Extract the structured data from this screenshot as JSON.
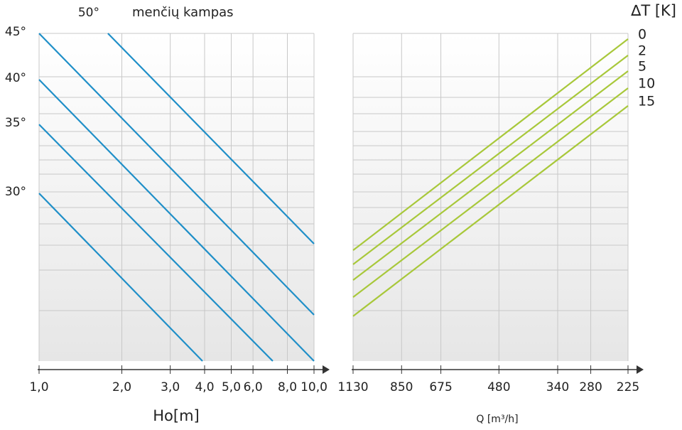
{
  "chart_data": [
    {
      "type": "line",
      "title": "menčių kampas",
      "xlabel": "Ho[m]",
      "xscale": "log",
      "xlim": [
        1,
        10
      ],
      "ylim": [
        0,
        100
      ],
      "xticks": [
        {
          "value": 1,
          "label": "1,0"
        },
        {
          "value": 2,
          "label": "2,0"
        },
        {
          "value": 3,
          "label": "3,0"
        },
        {
          "value": 4,
          "label": "4,0"
        },
        {
          "value": 5,
          "label": "5,0"
        },
        {
          "value": 6,
          "label": "6,0"
        },
        {
          "value": 8,
          "label": "8,0"
        },
        {
          "value": 10,
          "label": "10,0"
        }
      ],
      "grid": true,
      "series": [
        {
          "name": "50°",
          "color": "#1f8fc8",
          "x": [
            1.78,
            10
          ],
          "values": [
            100,
            35.8
          ]
        },
        {
          "name": "45°",
          "color": "#1f8fc8",
          "x": [
            1,
            10
          ],
          "values": [
            100,
            14.1
          ]
        },
        {
          "name": "40°",
          "color": "#1f8fc8",
          "x": [
            1,
            10
          ],
          "values": [
            85.9,
            0
          ]
        },
        {
          "name": "35°",
          "color": "#1f8fc8",
          "x": [
            1,
            7.08
          ],
          "values": [
            72.2,
            0
          ]
        },
        {
          "name": "30°",
          "color": "#1f8fc8",
          "x": [
            1,
            3.93
          ],
          "values": [
            51.2,
            0
          ]
        }
      ]
    },
    {
      "type": "line",
      "xlabel": "Q [m³/h]",
      "legend_title": "∆T [K]",
      "xscale": "log",
      "xlim": [
        1130,
        225
      ],
      "ylim": [
        0,
        100
      ],
      "xticks": [
        1130,
        850,
        675,
        480,
        340,
        280,
        225
      ],
      "grid": true,
      "series": [
        {
          "name": "0",
          "color": "#a8c83a",
          "x": [
            1130,
            225
          ],
          "values": [
            33.8,
            98.3
          ]
        },
        {
          "name": "2",
          "color": "#a8c83a",
          "x": [
            1130,
            225
          ],
          "values": [
            29.5,
            93.3
          ]
        },
        {
          "name": "5",
          "color": "#a8c83a",
          "x": [
            1130,
            225
          ],
          "values": [
            24.7,
            88.5
          ]
        },
        {
          "name": "10",
          "color": "#a8c83a",
          "x": [
            1130,
            225
          ],
          "values": [
            19.5,
            83.3
          ]
        },
        {
          "name": "15",
          "color": "#a8c83a",
          "x": [
            1130,
            225
          ],
          "values": [
            13.7,
            77.9
          ]
        }
      ]
    }
  ]
}
